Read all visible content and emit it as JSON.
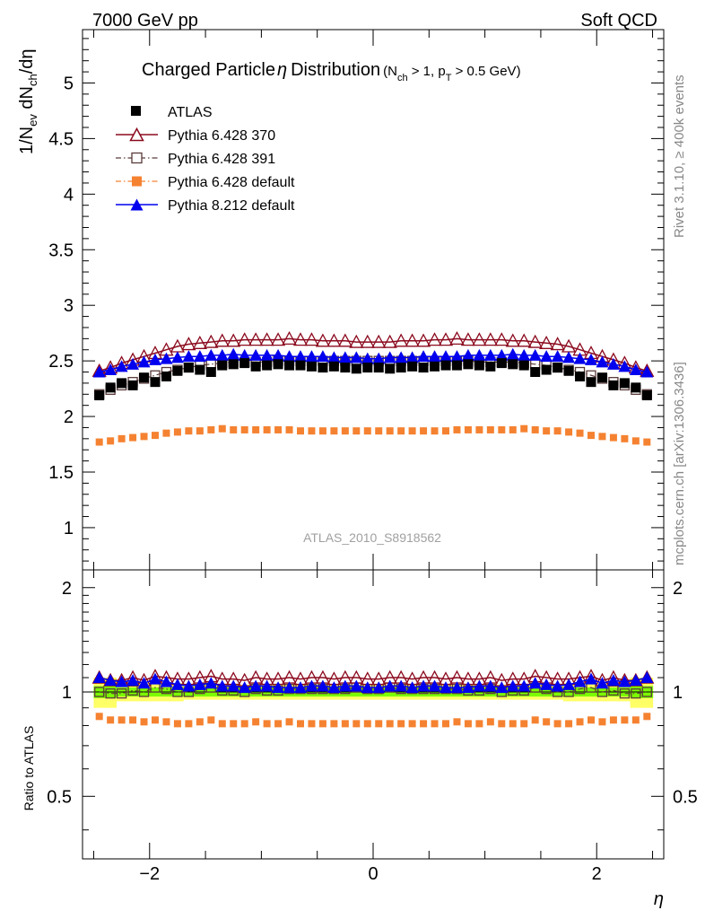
{
  "header": {
    "left": "7000 GeV pp",
    "right": "Soft QCD"
  },
  "side_labels": {
    "top": "Rivet 3.1.10, ≥ 400k events",
    "bottom": "mcplots.cern.ch [arXiv:1306.3436]"
  },
  "colors": {
    "atlas": "#000000",
    "py6_370": "#8b0a1e",
    "py6_391": "#5a3a3a",
    "py6_default": "#f58231",
    "py8_default": "#0000ee",
    "band_inner": "#7cfc00",
    "band_outer": "#ffff66"
  },
  "chart_data": [
    {
      "panel": "main",
      "type": "scatter",
      "title": "Charged Particle",
      "title_symbol": "η",
      "title_suffix": "Distribution",
      "title_cut": "(N",
      "title_cut_sub1": "ch",
      "title_cut_mid": " > 1, p",
      "title_cut_sub2": "T",
      "title_cut_end": " > 0.5 GeV)",
      "ylabel": "1/N",
      "ylabel_sub1": "ev",
      "ylabel_mid": " dN",
      "ylabel_sub2": "ch",
      "ylabel_end": "/dη",
      "watermark": "ATLAS_2010_S8918562",
      "ylim": [
        0.62,
        5.48
      ],
      "xlim": [
        -2.6,
        2.6
      ],
      "yticks": [
        "1",
        "1.5",
        "2",
        "2.5",
        "3",
        "3.5",
        "4",
        "4.5",
        "5"
      ],
      "ytick_values": [
        1,
        1.5,
        2,
        2.5,
        3,
        3.5,
        4,
        4.5,
        5
      ],
      "x": [
        -2.45,
        -2.35,
        -2.25,
        -2.15,
        -2.05,
        -1.95,
        -1.85,
        -1.75,
        -1.65,
        -1.55,
        -1.45,
        -1.35,
        -1.25,
        -1.15,
        -1.05,
        -0.95,
        -0.85,
        -0.75,
        -0.65,
        -0.55,
        -0.45,
        -0.35,
        -0.25,
        -0.15,
        -0.05,
        0.05,
        0.15,
        0.25,
        0.35,
        0.45,
        0.55,
        0.65,
        0.75,
        0.85,
        0.95,
        1.05,
        1.15,
        1.25,
        1.35,
        1.45,
        1.55,
        1.65,
        1.75,
        1.85,
        1.95,
        2.05,
        2.15,
        2.25,
        2.35,
        2.45
      ],
      "series": [
        {
          "name": "ATLAS",
          "values": [
            2.19,
            2.26,
            2.3,
            2.28,
            2.35,
            2.31,
            2.36,
            2.41,
            2.44,
            2.42,
            2.4,
            2.46,
            2.47,
            2.48,
            2.45,
            2.46,
            2.47,
            2.46,
            2.46,
            2.45,
            2.44,
            2.45,
            2.44,
            2.43,
            2.44,
            2.44,
            2.43,
            2.44,
            2.45,
            2.44,
            2.45,
            2.46,
            2.46,
            2.47,
            2.46,
            2.45,
            2.48,
            2.47,
            2.46,
            2.4,
            2.42,
            2.44,
            2.41,
            2.36,
            2.31,
            2.35,
            2.28,
            2.3,
            2.26,
            2.19
          ]
        },
        {
          "name": "Pythia 6.428 370",
          "values": [
            2.41,
            2.44,
            2.48,
            2.51,
            2.54,
            2.57,
            2.6,
            2.63,
            2.65,
            2.66,
            2.67,
            2.68,
            2.68,
            2.69,
            2.69,
            2.69,
            2.69,
            2.7,
            2.69,
            2.69,
            2.68,
            2.68,
            2.68,
            2.67,
            2.67,
            2.67,
            2.67,
            2.68,
            2.68,
            2.68,
            2.69,
            2.69,
            2.7,
            2.69,
            2.69,
            2.69,
            2.69,
            2.68,
            2.68,
            2.67,
            2.66,
            2.65,
            2.63,
            2.6,
            2.57,
            2.54,
            2.51,
            2.48,
            2.44,
            2.41
          ]
        },
        {
          "name": "Pythia 6.428 391",
          "values": [
            2.2,
            2.24,
            2.28,
            2.31,
            2.34,
            2.37,
            2.4,
            2.42,
            2.44,
            2.46,
            2.47,
            2.48,
            2.49,
            2.49,
            2.49,
            2.49,
            2.5,
            2.5,
            2.5,
            2.5,
            2.5,
            2.5,
            2.5,
            2.5,
            2.5,
            2.5,
            2.5,
            2.5,
            2.5,
            2.5,
            2.5,
            2.5,
            2.5,
            2.5,
            2.49,
            2.49,
            2.49,
            2.49,
            2.48,
            2.47,
            2.46,
            2.44,
            2.42,
            2.4,
            2.37,
            2.34,
            2.31,
            2.28,
            2.24,
            2.2
          ]
        },
        {
          "name": "Pythia 6.428 default",
          "values": [
            1.77,
            1.78,
            1.8,
            1.81,
            1.82,
            1.83,
            1.85,
            1.86,
            1.87,
            1.87,
            1.88,
            1.89,
            1.88,
            1.88,
            1.88,
            1.88,
            1.88,
            1.88,
            1.87,
            1.87,
            1.87,
            1.87,
            1.87,
            1.87,
            1.87,
            1.87,
            1.87,
            1.87,
            1.87,
            1.87,
            1.87,
            1.87,
            1.88,
            1.88,
            1.88,
            1.88,
            1.88,
            1.88,
            1.89,
            1.88,
            1.87,
            1.87,
            1.86,
            1.85,
            1.83,
            1.82,
            1.81,
            1.8,
            1.78,
            1.77
          ]
        },
        {
          "name": "Pythia 8.212 default",
          "values": [
            2.4,
            2.42,
            2.45,
            2.47,
            2.49,
            2.51,
            2.52,
            2.53,
            2.54,
            2.54,
            2.55,
            2.55,
            2.56,
            2.55,
            2.55,
            2.55,
            2.55,
            2.54,
            2.54,
            2.54,
            2.54,
            2.53,
            2.53,
            2.53,
            2.52,
            2.52,
            2.53,
            2.53,
            2.53,
            2.54,
            2.54,
            2.54,
            2.54,
            2.55,
            2.55,
            2.55,
            2.55,
            2.56,
            2.55,
            2.55,
            2.54,
            2.54,
            2.53,
            2.52,
            2.51,
            2.49,
            2.47,
            2.45,
            2.42,
            2.4
          ]
        }
      ]
    },
    {
      "panel": "ratio",
      "type": "scatter",
      "ylabel": "Ratio to ATLAS",
      "xlabel": "η",
      "ylim": [
        0.33,
        2.25
      ],
      "xlim": [
        -2.6,
        2.6
      ],
      "yticks": [
        "0.5",
        "1",
        "2"
      ],
      "ytick_values": [
        0.5,
        1,
        2
      ],
      "xticks": [
        "−2",
        "0",
        "2"
      ],
      "xtick_values": [
        -2,
        0,
        2
      ],
      "band_inner_halfwidth": [
        0.04,
        0.04,
        0.03,
        0.03,
        0.03,
        0.03,
        0.03,
        0.03,
        0.03,
        0.03,
        0.03,
        0.03,
        0.03,
        0.03,
        0.03,
        0.03,
        0.03,
        0.03,
        0.03,
        0.03,
        0.03,
        0.03,
        0.03,
        0.03,
        0.03,
        0.03,
        0.03,
        0.03,
        0.03,
        0.03,
        0.03,
        0.03,
        0.03,
        0.03,
        0.03,
        0.03,
        0.03,
        0.03,
        0.03,
        0.03,
        0.03,
        0.03,
        0.03,
        0.03,
        0.03,
        0.03,
        0.03,
        0.03,
        0.04,
        0.04
      ],
      "band_outer_halfwidth": [
        0.1,
        0.1,
        0.06,
        0.06,
        0.06,
        0.06,
        0.06,
        0.06,
        0.05,
        0.05,
        0.05,
        0.05,
        0.05,
        0.05,
        0.05,
        0.05,
        0.05,
        0.05,
        0.05,
        0.05,
        0.05,
        0.05,
        0.05,
        0.05,
        0.05,
        0.05,
        0.05,
        0.05,
        0.05,
        0.05,
        0.05,
        0.05,
        0.05,
        0.05,
        0.05,
        0.05,
        0.05,
        0.05,
        0.05,
        0.05,
        0.05,
        0.05,
        0.06,
        0.06,
        0.06,
        0.06,
        0.06,
        0.06,
        0.1,
        0.1
      ],
      "series": [
        {
          "name": "ATLAS",
          "values": [
            1,
            1,
            1,
            1,
            1,
            1,
            1,
            1,
            1,
            1,
            1,
            1,
            1,
            1,
            1,
            1,
            1,
            1,
            1,
            1,
            1,
            1,
            1,
            1,
            1,
            1,
            1,
            1,
            1,
            1,
            1,
            1,
            1,
            1,
            1,
            1,
            1,
            1,
            1,
            1,
            1,
            1,
            1,
            1,
            1,
            1,
            1,
            1,
            1,
            1
          ]
        },
        {
          "name": "Pythia 6.428 370",
          "values": [
            1.1,
            1.08,
            1.08,
            1.1,
            1.08,
            1.11,
            1.1,
            1.09,
            1.09,
            1.1,
            1.11,
            1.09,
            1.09,
            1.08,
            1.1,
            1.09,
            1.09,
            1.1,
            1.09,
            1.1,
            1.1,
            1.09,
            1.1,
            1.1,
            1.09,
            1.09,
            1.1,
            1.1,
            1.09,
            1.1,
            1.1,
            1.09,
            1.1,
            1.09,
            1.09,
            1.1,
            1.08,
            1.09,
            1.09,
            1.11,
            1.1,
            1.09,
            1.09,
            1.1,
            1.11,
            1.08,
            1.1,
            1.08,
            1.08,
            1.1
          ]
        },
        {
          "name": "Pythia 6.428 391",
          "values": [
            1.0,
            0.99,
            0.99,
            1.01,
            1.0,
            1.03,
            1.02,
            1.0,
            1.0,
            1.02,
            1.03,
            1.01,
            1.01,
            1.0,
            1.02,
            1.01,
            1.01,
            1.02,
            1.02,
            1.02,
            1.02,
            1.02,
            1.02,
            1.03,
            1.02,
            1.02,
            1.03,
            1.02,
            1.02,
            1.02,
            1.02,
            1.02,
            1.02,
            1.01,
            1.01,
            1.02,
            1.0,
            1.01,
            1.01,
            1.03,
            1.02,
            1.0,
            1.0,
            1.02,
            1.03,
            1.0,
            1.01,
            0.99,
            0.99,
            1.0
          ]
        },
        {
          "name": "Pythia 6.428 default",
          "values": [
            0.85,
            0.83,
            0.83,
            0.83,
            0.82,
            0.83,
            0.82,
            0.81,
            0.81,
            0.82,
            0.83,
            0.81,
            0.81,
            0.81,
            0.82,
            0.81,
            0.81,
            0.82,
            0.81,
            0.81,
            0.81,
            0.81,
            0.81,
            0.81,
            0.81,
            0.81,
            0.81,
            0.81,
            0.81,
            0.81,
            0.81,
            0.81,
            0.82,
            0.81,
            0.81,
            0.82,
            0.81,
            0.81,
            0.81,
            0.83,
            0.82,
            0.81,
            0.81,
            0.82,
            0.83,
            0.82,
            0.83,
            0.83,
            0.83,
            0.85
          ]
        },
        {
          "name": "Pythia 8.212 default",
          "values": [
            1.1,
            1.08,
            1.07,
            1.08,
            1.06,
            1.09,
            1.07,
            1.05,
            1.04,
            1.05,
            1.06,
            1.04,
            1.04,
            1.03,
            1.04,
            1.04,
            1.03,
            1.03,
            1.03,
            1.04,
            1.04,
            1.03,
            1.04,
            1.04,
            1.03,
            1.03,
            1.04,
            1.04,
            1.03,
            1.04,
            1.04,
            1.03,
            1.03,
            1.03,
            1.04,
            1.04,
            1.03,
            1.04,
            1.04,
            1.06,
            1.05,
            1.04,
            1.05,
            1.07,
            1.09,
            1.06,
            1.08,
            1.07,
            1.08,
            1.1
          ]
        }
      ]
    }
  ]
}
